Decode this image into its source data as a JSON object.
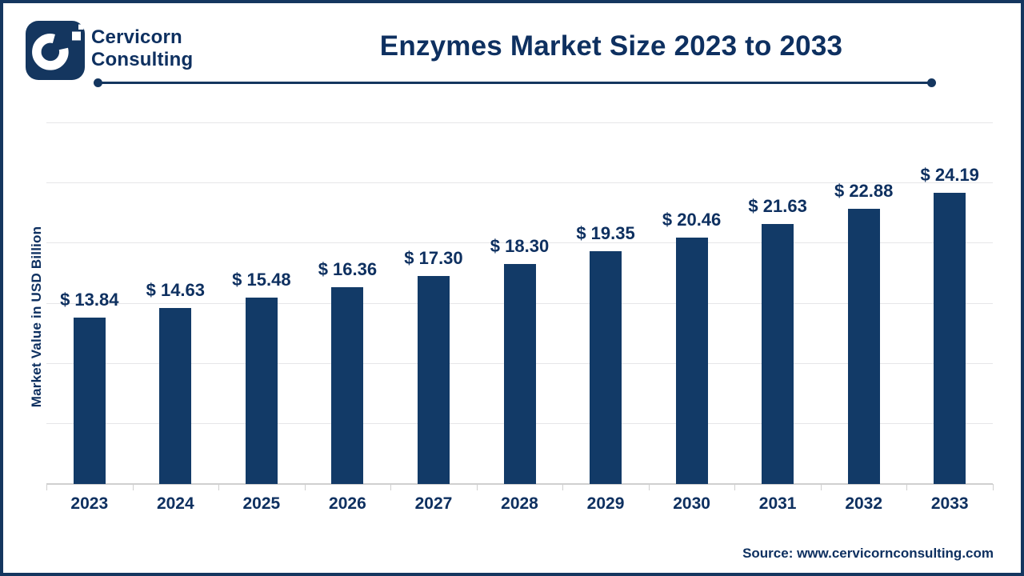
{
  "brand": {
    "line1": "Cervicorn",
    "line2": "Consulting",
    "logo_glyph": "C"
  },
  "header": {
    "title": "Enzymes Market Size 2023 to 2033"
  },
  "chart_data": {
    "type": "bar",
    "title": "Enzymes Market Size 2023 to 2033",
    "xlabel": "",
    "ylabel": "Market Value in USD Billion",
    "categories": [
      "2023",
      "2024",
      "2025",
      "2026",
      "2027",
      "2028",
      "2029",
      "2030",
      "2031",
      "2032",
      "2033"
    ],
    "values": [
      13.84,
      14.63,
      15.48,
      16.36,
      17.3,
      18.3,
      19.35,
      20.46,
      21.63,
      22.88,
      24.19
    ],
    "value_labels": [
      "$ 13.84",
      "$ 14.63",
      "$ 15.48",
      "$ 16.36",
      "$ 17.30",
      "$ 18.30",
      "$ 19.35",
      "$ 20.46",
      "$ 21.63",
      "$ 22.88",
      "$ 24.19"
    ],
    "ylim": [
      0,
      30
    ],
    "gridline_step": 5,
    "grid": true,
    "legend_position": "none",
    "currency": "USD"
  },
  "footer": {
    "source": "Source: www.cervicornconsulting.com"
  },
  "colors": {
    "navy": "#14365f",
    "navy_text": "#0e3060",
    "bar_fill": "#123a67",
    "logo_bg": "#14365f",
    "gridline": "#e6e6e8",
    "axis_line": "#cfcfcf",
    "background": "#ffffff"
  }
}
